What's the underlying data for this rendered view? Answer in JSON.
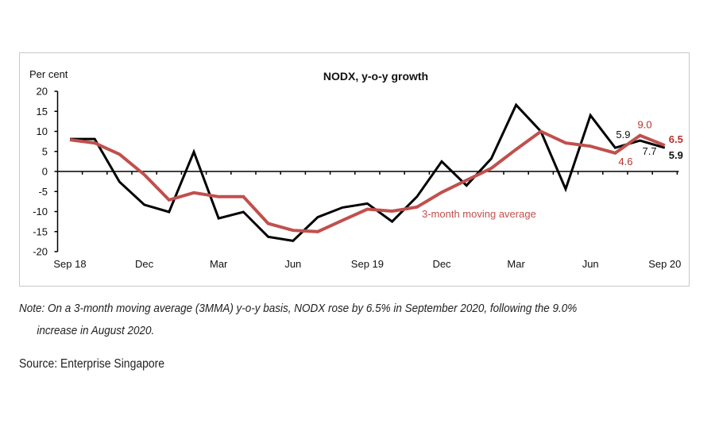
{
  "note": {
    "line1": "Note: On a 3-month moving average (3MMA) y-o-y basis, NODX rose by 6.5% in September 2020, following the 9.0%",
    "line2": "increase in August 2020."
  },
  "source": "Source: Enterprise Singapore",
  "colors": {
    "nodx": "#000000",
    "mma": "#c0504d",
    "annotation_red": "#b8312f",
    "frame": "#c8c8c8"
  },
  "chart_data": {
    "type": "line",
    "title": "NODX, y-o-y growth",
    "ylabel": "Per cent",
    "xlabel": "",
    "ylim": [
      -20,
      20
    ],
    "yticks": [
      20,
      15,
      10,
      5,
      0,
      -5,
      -10,
      -15,
      -20
    ],
    "grid": false,
    "x": [
      "Sep 18",
      "Oct 18",
      "Nov 18",
      "Dec 18",
      "Jan 19",
      "Feb 19",
      "Mar 19",
      "Apr 19",
      "May 19",
      "Jun 19",
      "Jul 19",
      "Aug 19",
      "Sep 19",
      "Oct 19",
      "Nov 19",
      "Dec 19",
      "Jan 20",
      "Feb 20",
      "Mar 20",
      "Apr 20",
      "May 20",
      "Jun 20",
      "Jul 20",
      "Aug 20",
      "Sep 20"
    ],
    "xtick_labels": [
      {
        "index": 0,
        "label": "Sep 18"
      },
      {
        "index": 3,
        "label": "Dec"
      },
      {
        "index": 6,
        "label": "Mar"
      },
      {
        "index": 9,
        "label": "Jun"
      },
      {
        "index": 12,
        "label": "Sep 19"
      },
      {
        "index": 15,
        "label": "Dec"
      },
      {
        "index": 18,
        "label": "Mar"
      },
      {
        "index": 21,
        "label": "Jun"
      },
      {
        "index": 24,
        "label": "Sep 20"
      }
    ],
    "series": [
      {
        "name": "NODX y-o-y growth",
        "color": "#000000",
        "values": [
          8.1,
          8.1,
          -2.6,
          -8.3,
          -10.1,
          4.9,
          -11.7,
          -10.1,
          -16.3,
          -17.3,
          -11.4,
          -9.0,
          -8.0,
          -12.5,
          -6.3,
          2.5,
          -3.5,
          3.2,
          16.6,
          10.0,
          -4.4,
          14.0,
          5.9,
          7.7,
          5.9
        ]
      },
      {
        "name": "3-month moving average",
        "color": "#c0504d",
        "values": [
          7.9,
          7.1,
          4.3,
          -0.8,
          -7.1,
          -5.3,
          -6.3,
          -6.3,
          -13.0,
          -14.7,
          -15.0,
          -12.2,
          -9.4,
          -9.9,
          -8.9,
          -5.2,
          -2.2,
          0.8,
          5.5,
          10.0,
          7.1,
          6.3,
          4.6,
          9.0,
          6.5
        ]
      }
    ],
    "legend": {
      "label": "3-month moving average",
      "placement": "inline-center-bottom"
    },
    "annotations": [
      {
        "text": "5.9",
        "series": "NODX y-o-y growth",
        "index": 22,
        "bold": false
      },
      {
        "text": "7.7",
        "series": "NODX y-o-y growth",
        "index": 23,
        "bold": false
      },
      {
        "text": "5.9",
        "series": "NODX y-o-y growth",
        "index": 24,
        "bold": true
      },
      {
        "text": "4.6",
        "series": "3-month moving average",
        "index": 22,
        "bold": false
      },
      {
        "text": "9.0",
        "series": "3-month moving average",
        "index": 23,
        "bold": false
      },
      {
        "text": "6.5",
        "series": "3-month moving average",
        "index": 24,
        "bold": true
      }
    ]
  }
}
